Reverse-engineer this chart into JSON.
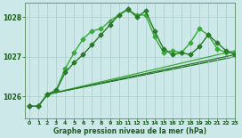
{
  "background_color": "#cce8e8",
  "grid_color": "#aacccc",
  "xlabel": "Graphe pression niveau de la mer (hPa)",
  "xlim": [
    -0.5,
    23
  ],
  "ylim": [
    1025.45,
    1028.35
  ],
  "yticks": [
    1026,
    1027,
    1028
  ],
  "xticks": [
    0,
    1,
    2,
    3,
    4,
    5,
    6,
    7,
    8,
    9,
    10,
    11,
    12,
    13,
    14,
    15,
    16,
    17,
    18,
    19,
    20,
    21,
    22,
    23
  ],
  "series": [
    {
      "x": [
        0,
        1,
        2,
        3,
        4,
        5,
        6,
        7,
        8,
        9,
        10,
        11,
        12,
        13,
        14,
        15,
        16,
        17,
        18,
        19,
        20,
        21,
        22,
        23
      ],
      "y": [
        1025.75,
        1025.75,
        1026.05,
        1026.15,
        1026.6,
        1026.85,
        1027.05,
        1027.3,
        1027.55,
        1027.8,
        1028.05,
        1028.2,
        1028.0,
        1028.15,
        1027.65,
        1027.2,
        1027.05,
        1027.1,
        1027.05,
        1027.25,
        1027.55,
        1027.35,
        1027.15,
        1027.05
      ],
      "color": "#2a7a2a",
      "lw": 1.0,
      "marker": "D",
      "ms": 2.5,
      "zorder": 5
    },
    {
      "x": [
        1,
        2,
        3,
        4,
        5,
        6,
        7,
        8,
        9,
        10,
        11,
        12,
        13,
        14,
        15,
        16,
        17,
        18,
        19,
        20,
        21,
        22,
        23
      ],
      "y": [
        1025.75,
        1026.05,
        1026.15,
        1026.7,
        1027.1,
        1027.45,
        1027.65,
        1027.7,
        1027.9,
        1028.05,
        1028.18,
        1028.05,
        1028.05,
        1027.5,
        1027.1,
        1027.15,
        1027.1,
        1027.35,
        1027.7,
        1027.55,
        1027.2,
        1027.1,
        1027.1
      ],
      "color": "#3aaa3a",
      "lw": 1.0,
      "marker": "D",
      "ms": 2.5,
      "zorder": 4
    },
    {
      "x": [
        2,
        23
      ],
      "y": [
        1026.05,
        1027.05
      ],
      "color": "#2a7a2a",
      "lw": 0.9,
      "marker": null,
      "ms": 0,
      "zorder": 3
    },
    {
      "x": [
        2,
        23
      ],
      "y": [
        1026.05,
        1027.15
      ],
      "color": "#3aaa3a",
      "lw": 0.9,
      "marker": null,
      "ms": 0,
      "zorder": 2
    },
    {
      "x": [
        2,
        23
      ],
      "y": [
        1026.05,
        1027.0
      ],
      "color": "#1a6b1a",
      "lw": 0.9,
      "marker": null,
      "ms": 0,
      "zorder": 1
    },
    {
      "x": [
        0,
        1,
        2
      ],
      "y": [
        1025.75,
        1025.75,
        1026.05
      ],
      "color": "#1a5c1a",
      "lw": 0.9,
      "marker": "D",
      "ms": 2.5,
      "zorder": 3
    }
  ]
}
